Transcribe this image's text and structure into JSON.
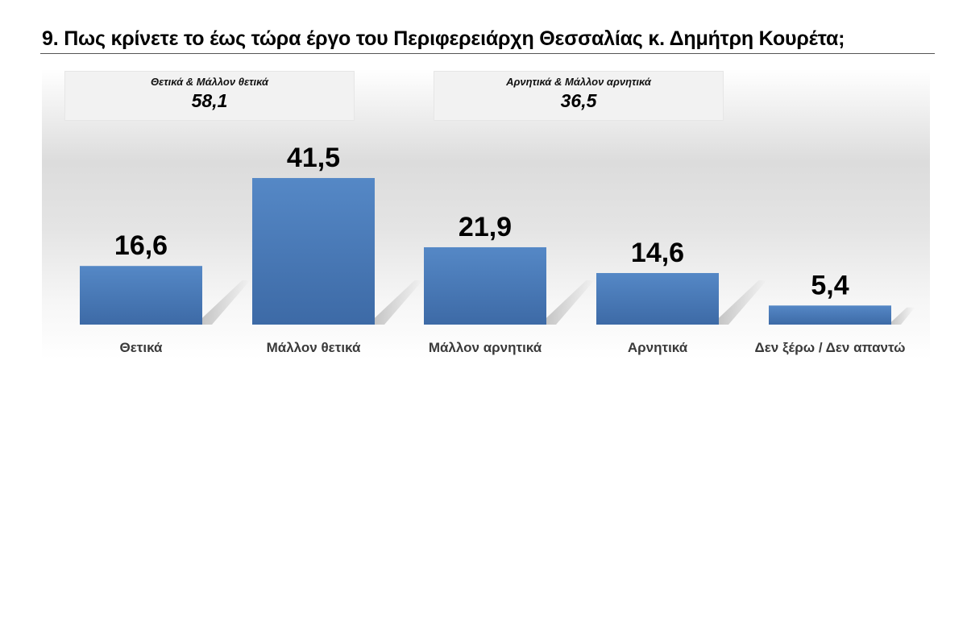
{
  "title": "9. Πως κρίνετε το έως τώρα έργο του Περιφερειάρχη Θεσσαλίας κ. Δημήτρη Κουρέτα;",
  "groups": [
    {
      "label": "Θετικά & Μάλλον θετικά",
      "value": "58,1"
    },
    {
      "label": "Αρνητικά & Μάλλον αρνητικά",
      "value": "36,5"
    }
  ],
  "chart_data": {
    "type": "bar",
    "title": "9. Πως κρίνετε το έως τώρα έργο του Περιφερειάρχη Θεσσαλίας κ. Δημήτρη Κουρέτα;",
    "categories": [
      "Θετικά",
      "Μάλλον θετικά",
      "Μάλλον αρνητικά",
      "Αρνητικά",
      "Δεν ξέρω / Δεν απαντώ"
    ],
    "values": [
      16.6,
      41.5,
      21.9,
      14.6,
      5.4
    ],
    "value_labels": [
      "16,6",
      "41,5",
      "21,9",
      "14,6",
      "5,4"
    ],
    "xlabel": "",
    "ylabel": "",
    "ylim": [
      0,
      45
    ],
    "grid": false,
    "legend": "none",
    "bar_color": "#4a7ab8"
  }
}
